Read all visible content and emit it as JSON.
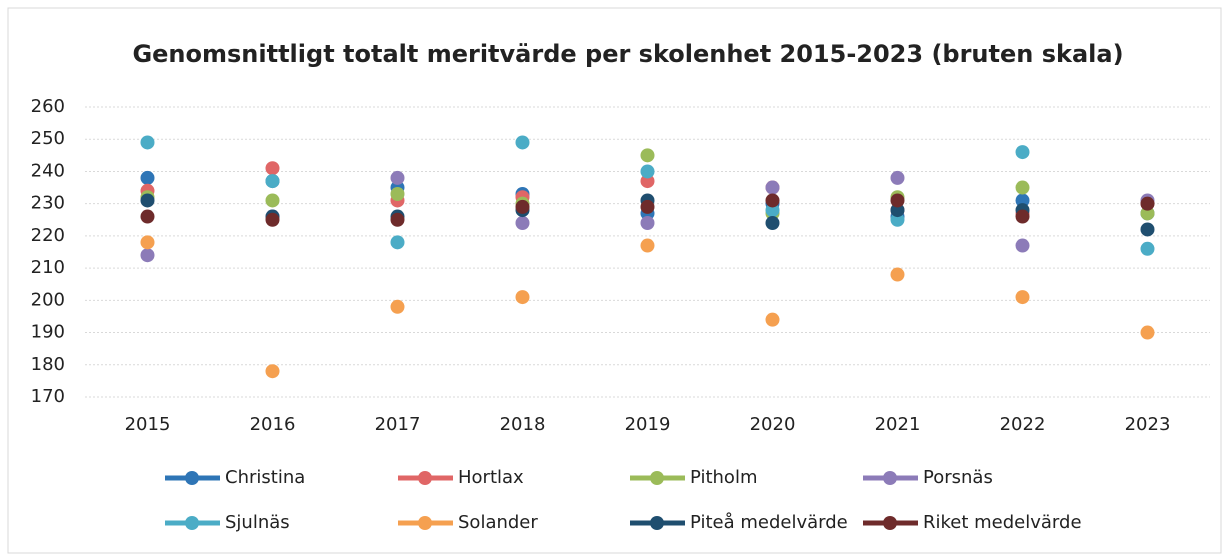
{
  "chart_data": {
    "type": "line",
    "title": "Genomsnittligt totalt meritvärde per skolenhet 2015-2023 (bruten skala)",
    "categories": [
      "2015",
      "2016",
      "2017",
      "2018",
      "2019",
      "2020",
      "2021",
      "2022",
      "2023"
    ],
    "ylim": [
      170,
      260
    ],
    "yticks": [
      170,
      180,
      190,
      200,
      210,
      220,
      230,
      240,
      250,
      260
    ],
    "grid": true,
    "series": [
      {
        "name": "Christina",
        "color": "#2e75b6",
        "values": [
          238,
          237,
          235,
          233,
          227,
          230,
          226,
          231,
          227
        ]
      },
      {
        "name": "Hortlax",
        "color": "#e06666",
        "values": [
          234,
          241,
          231,
          232,
          237,
          235,
          228,
          227,
          230
        ]
      },
      {
        "name": "Pitholm",
        "color": "#9bbb59",
        "values": [
          232,
          231,
          233,
          230,
          245,
          227,
          232,
          235,
          227
        ]
      },
      {
        "name": "Porsnäs",
        "color": "#8c7bb8",
        "values": [
          214,
          226,
          238,
          224,
          224,
          235,
          238,
          217,
          231
        ]
      },
      {
        "name": "Sjulnäs",
        "color": "#4bacc6",
        "values": [
          249,
          237,
          218,
          249,
          240,
          228,
          225,
          246,
          216
        ]
      },
      {
        "name": "Solander",
        "color": "#f5a050",
        "values": [
          218,
          178,
          198,
          201,
          217,
          194,
          208,
          201,
          190
        ]
      },
      {
        "name": "Piteå medelvärde",
        "color": "#1f4e6f",
        "values": [
          231,
          226,
          226,
          228,
          231,
          224,
          228,
          228,
          222
        ]
      },
      {
        "name": "Riket medelvärde",
        "color": "#6e2b2b",
        "values": [
          226,
          225,
          225,
          229,
          229,
          231,
          231,
          226,
          230
        ]
      }
    ]
  }
}
